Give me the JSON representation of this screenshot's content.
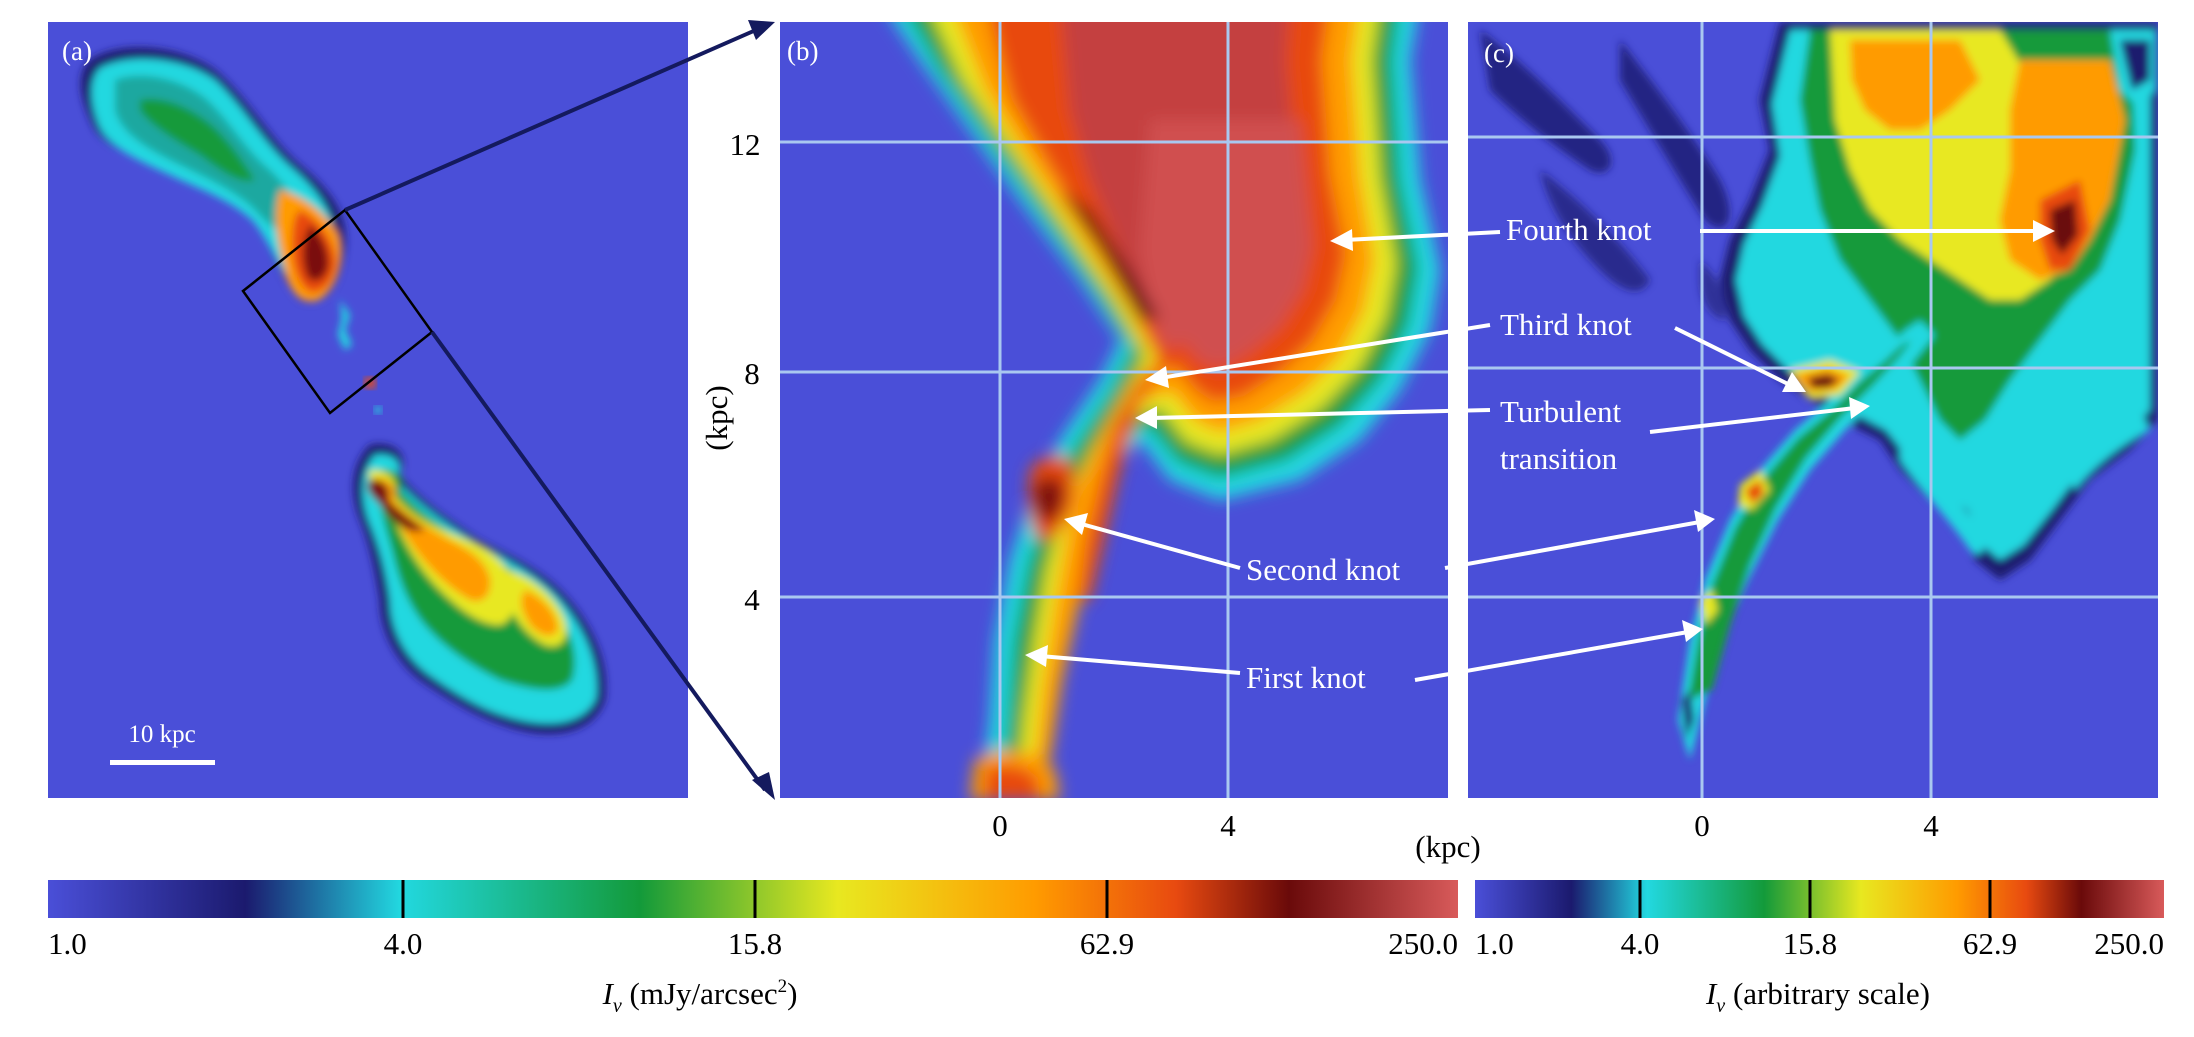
{
  "panels": {
    "a": {
      "label": "(a)",
      "scalebar_label": "10 kpc"
    },
    "b": {
      "label": "(b)",
      "x_ticks": [
        "0",
        "4"
      ],
      "y_ticks": [
        "12",
        "8",
        "4"
      ],
      "y_axis_label": "(kpc)"
    },
    "c": {
      "label": "(c)",
      "x_ticks": [
        "0",
        "4"
      ]
    },
    "shared_x_axis_label": "(kpc)"
  },
  "annotations": {
    "fourth_knot": "Fourth knot",
    "third_knot": "Third knot",
    "turbulent_line1": "Turbulent",
    "turbulent_line2": "transition",
    "second_knot": "Second knot",
    "first_knot": "First knot"
  },
  "colorbars": {
    "left": {
      "ticks": [
        "1.0",
        "4.0",
        "15.8",
        "62.9",
        "250.0"
      ],
      "label_symbol": "I",
      "label_sub": "ν",
      "label_unit": " (mJy/arcsec",
      "label_sup": "2",
      "label_close": ")"
    },
    "right": {
      "ticks": [
        "1.0",
        "4.0",
        "15.8",
        "62.9",
        "250.0"
      ],
      "label_symbol": "I",
      "label_sub": "ν",
      "label_unit": " (arbitrary scale)"
    }
  },
  "colors": {
    "background": "#4a4fd8",
    "grid": "#a9c8f0",
    "arrow_zoom": "#141a5e",
    "colormap": [
      "#4a4fd8",
      "#1b1a6e",
      "#22d8e0",
      "#139a3a",
      "#e8e820",
      "#ff9b00",
      "#e84a10",
      "#6a0a0a",
      "#d85a5a"
    ]
  }
}
